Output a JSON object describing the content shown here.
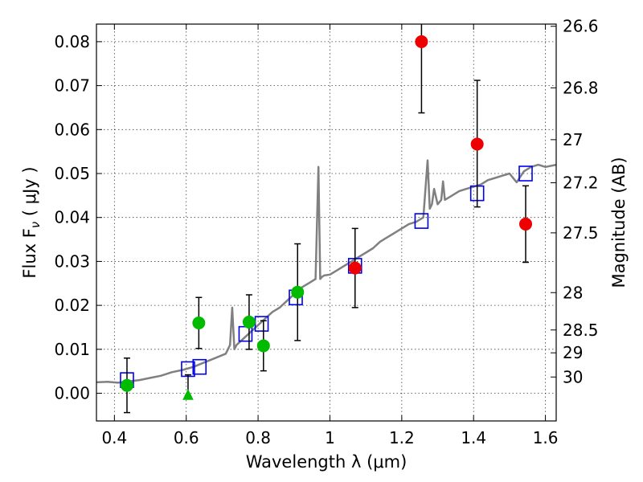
{
  "chart_data": {
    "type": "scatter",
    "xlabel": "Wavelength  λ (μm)",
    "ylabel": "Flux  F",
    "ylabel_sub": "ν",
    "ylabel_unit": "  ( μJy )",
    "ylabel_right": "Magnitude (AB)",
    "xlim": [
      0.35,
      1.63
    ],
    "ylim": [
      -0.0063,
      0.084
    ],
    "grid": true,
    "x_ticks": [
      0.4,
      0.6,
      0.8,
      1.0,
      1.2,
      1.4,
      1.6
    ],
    "x_tick_labels": [
      "0.4",
      "0.6",
      "0.8",
      "1",
      "1.2",
      "1.4",
      "1.6"
    ],
    "y_ticks": [
      0.0,
      0.01,
      0.02,
      0.03,
      0.04,
      0.05,
      0.06,
      0.07,
      0.08
    ],
    "y_tick_labels": [
      "0.00",
      "0.01",
      "0.02",
      "0.03",
      "0.04",
      "0.05",
      "0.06",
      "0.07",
      "0.08"
    ],
    "right_ticks": [
      {
        "label": "26.6",
        "flux": 0.0835
      },
      {
        "label": "26.8",
        "flux": 0.0695
      },
      {
        "label": "27",
        "flux": 0.0577
      },
      {
        "label": "27.2",
        "flux": 0.0479
      },
      {
        "label": "27.5",
        "flux": 0.0365
      },
      {
        "label": "28",
        "flux": 0.0229
      },
      {
        "label": "28.5",
        "flux": 0.0144
      },
      {
        "label": "29",
        "flux": 0.0092
      },
      {
        "label": "30",
        "flux": 0.0037
      }
    ],
    "series": [
      {
        "kind": "spectrum",
        "color": "#808080",
        "x": [
          0.35,
          0.38,
          0.41,
          0.44,
          0.47,
          0.5,
          0.53,
          0.56,
          0.59,
          0.62,
          0.65,
          0.68,
          0.71,
          0.722,
          0.728,
          0.734,
          0.74,
          0.76,
          0.78,
          0.8,
          0.82,
          0.84,
          0.86,
          0.88,
          0.9,
          0.92,
          0.94,
          0.96,
          0.968,
          0.973,
          0.978,
          0.984,
          1.0,
          1.02,
          1.04,
          1.06,
          1.08,
          1.1,
          1.12,
          1.14,
          1.16,
          1.18,
          1.2,
          1.22,
          1.24,
          1.26,
          1.272,
          1.278,
          1.284,
          1.29,
          1.3,
          1.31,
          1.315,
          1.32,
          1.34,
          1.36,
          1.38,
          1.4,
          1.42,
          1.44,
          1.46,
          1.48,
          1.5,
          1.52,
          1.54,
          1.56,
          1.58,
          1.6,
          1.63
        ],
        "y": [
          0.0025,
          0.0026,
          0.0024,
          0.0027,
          0.003,
          0.0035,
          0.004,
          0.0048,
          0.0053,
          0.006,
          0.007,
          0.008,
          0.009,
          0.011,
          0.0195,
          0.01,
          0.011,
          0.0125,
          0.014,
          0.0155,
          0.017,
          0.0185,
          0.0195,
          0.021,
          0.0225,
          0.024,
          0.025,
          0.026,
          0.0515,
          0.026,
          0.0265,
          0.0268,
          0.027,
          0.028,
          0.029,
          0.03,
          0.031,
          0.032,
          0.033,
          0.0345,
          0.0355,
          0.0365,
          0.0375,
          0.0385,
          0.039,
          0.04,
          0.053,
          0.042,
          0.043,
          0.0465,
          0.043,
          0.044,
          0.0482,
          0.044,
          0.045,
          0.046,
          0.0465,
          0.047,
          0.0475,
          0.0485,
          0.049,
          0.0495,
          0.05,
          0.048,
          0.0505,
          0.0515,
          0.052,
          0.0515,
          0.052
        ]
      },
      {
        "kind": "model-squares",
        "color": "#0000ee",
        "x": [
          0.435,
          0.605,
          0.637,
          0.765,
          0.81,
          0.905,
          1.07,
          1.255,
          1.41,
          1.545
        ],
        "y": [
          0.003,
          0.0055,
          0.006,
          0.0135,
          0.0158,
          0.0218,
          0.029,
          0.0392,
          0.0455,
          0.05
        ]
      },
      {
        "kind": "green-points",
        "color": "#00bb00",
        "x": [
          0.435,
          0.635,
          0.775,
          0.815,
          0.91
        ],
        "y": [
          0.0018,
          0.016,
          0.0162,
          0.0108,
          0.023
        ],
        "err_low": [
          0.0062,
          0.0058,
          0.0062,
          0.0057,
          0.011
        ],
        "err_high": [
          0.0062,
          0.0058,
          0.0062,
          0.0057,
          0.011
        ]
      },
      {
        "kind": "green-triangle",
        "color": "#00bb00",
        "x": [
          0.605
        ],
        "y": [
          -0.0005
        ],
        "err_low": [
          0.0
        ],
        "err_high": [
          0.0047
        ]
      },
      {
        "kind": "red-points",
        "color": "#ee0000",
        "x": [
          1.07,
          1.255,
          1.41,
          1.545
        ],
        "y": [
          0.0285,
          0.08,
          0.0567,
          0.0385
        ],
        "err_low": [
          0.009,
          0.0162,
          0.0143,
          0.0087
        ],
        "err_high": [
          0.009,
          0.0162,
          0.0145,
          0.0087
        ]
      }
    ]
  }
}
